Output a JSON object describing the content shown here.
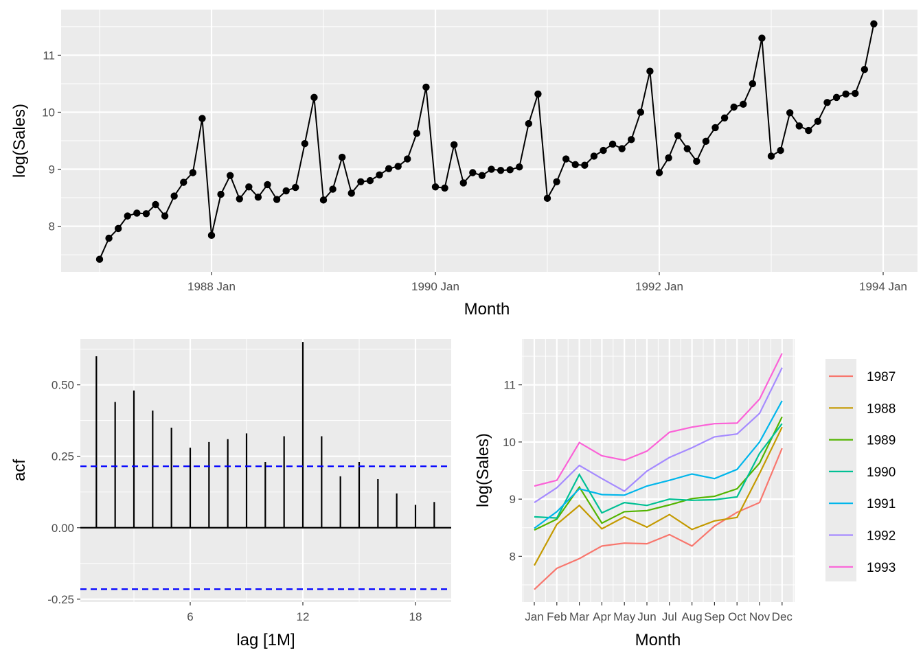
{
  "chart_data": [
    {
      "id": "time-series",
      "type": "line",
      "xlabel": "Month",
      "ylabel": "log(Sales)",
      "grid": true,
      "x_tick_labels": [
        "1988 Jan",
        "1990 Jan",
        "1992 Jan",
        "1994 Jan"
      ],
      "y_ticks": [
        8,
        9,
        10,
        11
      ],
      "ylim": [
        7.2,
        11.8
      ],
      "x_start": "1987 Jan",
      "markers": true,
      "values": [
        7.42,
        7.79,
        7.96,
        8.18,
        8.23,
        8.22,
        8.38,
        8.18,
        8.53,
        8.77,
        8.94,
        9.89,
        7.84,
        8.56,
        8.89,
        8.48,
        8.69,
        8.51,
        8.73,
        8.47,
        8.62,
        8.68,
        9.45,
        10.26,
        8.46,
        8.65,
        9.21,
        8.58,
        8.78,
        8.8,
        8.9,
        9.01,
        9.05,
        9.18,
        9.63,
        10.44,
        8.69,
        8.67,
        9.43,
        8.76,
        8.94,
        8.89,
        9.0,
        8.98,
        8.99,
        9.04,
        9.8,
        10.32,
        8.49,
        8.78,
        9.18,
        9.08,
        9.07,
        9.23,
        9.33,
        9.44,
        9.36,
        9.52,
        10.0,
        10.72,
        8.94,
        9.2,
        9.59,
        9.36,
        9.14,
        9.49,
        9.73,
        9.9,
        10.09,
        10.14,
        10.5,
        11.3,
        9.23,
        9.33,
        9.99,
        9.76,
        9.68,
        9.84,
        10.17,
        10.26,
        10.32,
        10.33,
        10.75,
        11.55
      ]
    },
    {
      "id": "acf",
      "type": "bar",
      "xlabel": "lag [1M]",
      "ylabel": "acf",
      "grid": true,
      "x_ticks": [
        6,
        12,
        18
      ],
      "y_ticks": [
        -0.25,
        0.0,
        0.25,
        0.5
      ],
      "y_tick_labels": [
        "-0.25",
        "0.00",
        "0.25",
        "0.50"
      ],
      "ylim": [
        -0.26,
        0.66
      ],
      "lags": [
        1,
        2,
        3,
        4,
        5,
        6,
        7,
        8,
        9,
        10,
        11,
        12,
        13,
        14,
        15,
        16,
        17,
        18,
        19
      ],
      "values": [
        0.6,
        0.44,
        0.48,
        0.41,
        0.35,
        0.28,
        0.3,
        0.31,
        0.33,
        0.23,
        0.32,
        0.65,
        0.32,
        0.18,
        0.23,
        0.17,
        0.12,
        0.08,
        0.09
      ],
      "confidence_bound": 0.215,
      "confidence_color": "#0000ff"
    },
    {
      "id": "seasonal",
      "type": "line",
      "xlabel": "Month",
      "ylabel": "log(Sales)",
      "grid": true,
      "categories": [
        "Jan",
        "Feb",
        "Mar",
        "Apr",
        "May",
        "Jun",
        "Jul",
        "Aug",
        "Sep",
        "Oct",
        "Nov",
        "Dec"
      ],
      "y_ticks": [
        8,
        9,
        10,
        11
      ],
      "ylim": [
        7.2,
        11.8
      ],
      "legend_position": "right",
      "series": [
        {
          "name": "1987",
          "color": "#F8766D",
          "values": [
            7.42,
            7.79,
            7.96,
            8.18,
            8.23,
            8.22,
            8.38,
            8.18,
            8.53,
            8.77,
            8.94,
            9.89
          ]
        },
        {
          "name": "1988",
          "color": "#C49A00",
          "values": [
            7.84,
            8.56,
            8.89,
            8.48,
            8.69,
            8.51,
            8.73,
            8.47,
            8.62,
            8.68,
            9.45,
            10.26
          ]
        },
        {
          "name": "1989",
          "color": "#53B400",
          "values": [
            8.46,
            8.65,
            9.21,
            8.58,
            8.78,
            8.8,
            8.9,
            9.01,
            9.05,
            9.18,
            9.63,
            10.44
          ]
        },
        {
          "name": "1990",
          "color": "#00C094",
          "values": [
            8.69,
            8.67,
            9.43,
            8.76,
            8.94,
            8.89,
            9.0,
            8.98,
            8.99,
            9.04,
            9.8,
            10.32
          ]
        },
        {
          "name": "1991",
          "color": "#00B6EB",
          "values": [
            8.49,
            8.78,
            9.18,
            9.08,
            9.07,
            9.23,
            9.33,
            9.44,
            9.36,
            9.52,
            10.0,
            10.72
          ]
        },
        {
          "name": "1992",
          "color": "#A58AFF",
          "values": [
            8.94,
            9.2,
            9.59,
            9.36,
            9.14,
            9.49,
            9.73,
            9.9,
            10.09,
            10.14,
            10.5,
            11.3
          ]
        },
        {
          "name": "1993",
          "color": "#FB61D7",
          "values": [
            9.23,
            9.33,
            9.99,
            9.76,
            9.68,
            9.84,
            10.17,
            10.26,
            10.32,
            10.33,
            10.75,
            11.55
          ]
        }
      ]
    }
  ]
}
